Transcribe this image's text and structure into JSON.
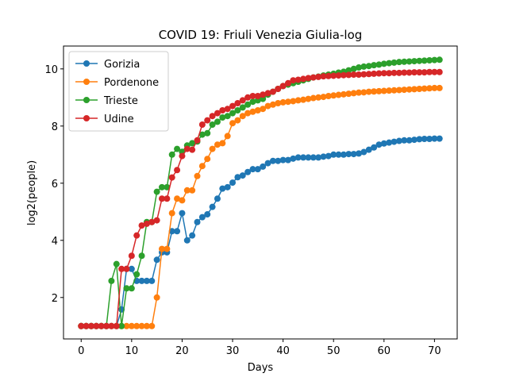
{
  "chart_data": {
    "type": "line",
    "title": "COVID 19: Friuli Venezia Giulia-log",
    "xlabel": "Days",
    "ylabel": "log2(people)",
    "xlim": [
      -3.5,
      74.5
    ],
    "ylim": [
      0.55,
      10.8
    ],
    "xticks": [
      0,
      10,
      20,
      30,
      40,
      50,
      60,
      70
    ],
    "yticks": [
      2,
      4,
      6,
      8,
      10
    ],
    "grid": false,
    "legend_position": "upper-left",
    "series": [
      {
        "name": "Gorizia",
        "color": "#1f77b4",
        "values": [
          1,
          1,
          1,
          1,
          1,
          1,
          1,
          1,
          1.58,
          3,
          3,
          2.58,
          2.58,
          2.58,
          2.58,
          3.32,
          3.58,
          3.58,
          4.32,
          4.32,
          4.95,
          4,
          4.17,
          4.64,
          4.81,
          4.91,
          5.17,
          5.46,
          5.81,
          5.86,
          6.02,
          6.21,
          6.27,
          6.39,
          6.49,
          6.49,
          6.58,
          6.7,
          6.78,
          6.78,
          6.81,
          6.81,
          6.86,
          6.9,
          6.9,
          6.9,
          6.9,
          6.9,
          6.93,
          6.95,
          7,
          7,
          7,
          7.02,
          7.02,
          7.04,
          7.09,
          7.17,
          7.25,
          7.35,
          7.39,
          7.42,
          7.45,
          7.48,
          7.5,
          7.5,
          7.52,
          7.54,
          7.55,
          7.55,
          7.56,
          7.56
        ]
      },
      {
        "name": "Pordenone",
        "color": "#ff7f0e",
        "values": [
          1,
          1,
          1,
          1,
          1,
          1,
          1,
          1,
          1,
          1,
          1,
          1,
          1,
          1,
          1,
          2,
          3.7,
          3.7,
          4.95,
          5.46,
          5.4,
          5.75,
          5.75,
          6.25,
          6.6,
          6.85,
          7.2,
          7.35,
          7.4,
          7.65,
          8.1,
          8.2,
          8.35,
          8.45,
          8.5,
          8.55,
          8.6,
          8.7,
          8.75,
          8.8,
          8.83,
          8.85,
          8.87,
          8.9,
          8.92,
          8.95,
          8.98,
          9,
          9.02,
          9.05,
          9.07,
          9.09,
          9.11,
          9.13,
          9.15,
          9.17,
          9.18,
          9.2,
          9.21,
          9.22,
          9.23,
          9.24,
          9.25,
          9.26,
          9.27,
          9.28,
          9.29,
          9.3,
          9.31,
          9.32,
          9.33,
          9.33
        ]
      },
      {
        "name": "Trieste",
        "color": "#2ca02c",
        "values": [
          1,
          1,
          1,
          1,
          1,
          1,
          2.58,
          3.17,
          1,
          2.32,
          2.32,
          2.81,
          3.46,
          4.64,
          4.64,
          5.7,
          5.86,
          5.86,
          7,
          7.2,
          7.1,
          7.32,
          7.4,
          7.46,
          7.7,
          7.75,
          8.05,
          8.15,
          8.3,
          8.35,
          8.45,
          8.55,
          8.65,
          8.75,
          8.85,
          8.9,
          8.95,
          9.1,
          9.2,
          9.3,
          9.4,
          9.45,
          9.5,
          9.55,
          9.6,
          9.65,
          9.7,
          9.73,
          9.77,
          9.8,
          9.83,
          9.87,
          9.9,
          9.95,
          10,
          10.05,
          10.08,
          10.1,
          10.13,
          10.15,
          10.18,
          10.2,
          10.22,
          10.24,
          10.25,
          10.26,
          10.27,
          10.28,
          10.29,
          10.3,
          10.31,
          10.32
        ]
      },
      {
        "name": "Udine",
        "color": "#d62728",
        "values": [
          1,
          1,
          1,
          1,
          1,
          1,
          1,
          1,
          3,
          3,
          3.46,
          4.17,
          4.52,
          4.58,
          4.64,
          4.7,
          5.46,
          5.46,
          6.2,
          6.46,
          6.95,
          7.2,
          7.17,
          7.5,
          8.05,
          8.2,
          8.35,
          8.45,
          8.55,
          8.6,
          8.7,
          8.8,
          8.9,
          9,
          9.05,
          9.05,
          9.1,
          9.15,
          9.2,
          9.3,
          9.4,
          9.5,
          9.6,
          9.62,
          9.65,
          9.68,
          9.7,
          9.72,
          9.74,
          9.75,
          9.76,
          9.77,
          9.78,
          9.79,
          9.8,
          9.8,
          9.81,
          9.82,
          9.83,
          9.84,
          9.85,
          9.85,
          9.86,
          9.86,
          9.87,
          9.87,
          9.88,
          9.88,
          9.88,
          9.89,
          9.89,
          9.89
        ]
      }
    ]
  }
}
